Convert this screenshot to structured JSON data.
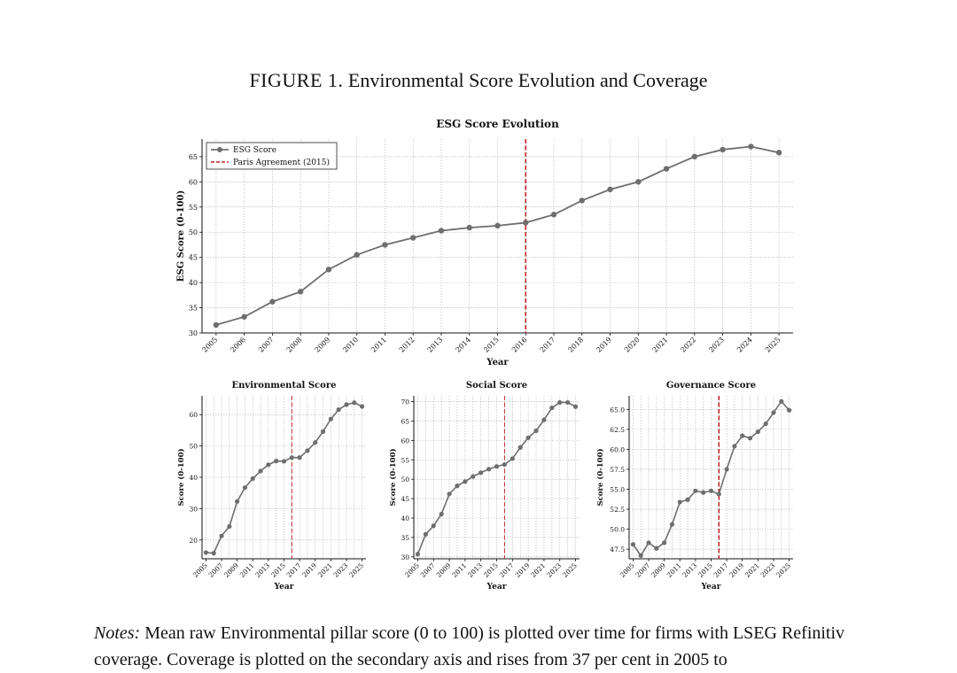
{
  "figure": {
    "label": "FIGURE 1.",
    "title": "Environmental Score Evolution and Coverage"
  },
  "notes": {
    "label": "Notes:",
    "text": "Mean raw Environmental pillar score (0 to 100) is plotted over time for firms with LSEG Refinitiv coverage. Coverage is plotted on the secondary axis and rises from 37 per cent in 2005 to"
  },
  "colors": {
    "line": "#6e6e6e",
    "marker": "#6e6e6e",
    "paris_line": "#c0272d",
    "grid": "#b0b0b0"
  },
  "chart_data": [
    {
      "type": "line",
      "title": "ESG Score Evolution",
      "xlabel": "Year",
      "ylabel": "ESG Score (0-100)",
      "x": [
        2005,
        2006,
        2007,
        2008,
        2009,
        2010,
        2011,
        2012,
        2013,
        2014,
        2015,
        2016,
        2017,
        2018,
        2019,
        2020,
        2021,
        2022,
        2023,
        2024,
        2025
      ],
      "series": [
        {
          "name": "ESG Score",
          "values": [
            31.6,
            33.2,
            36.2,
            38.2,
            42.6,
            45.5,
            47.5,
            48.9,
            50.3,
            50.9,
            51.3,
            51.9,
            53.5,
            56.3,
            58.5,
            60.0,
            62.6,
            65.0,
            66.4,
            67.0,
            65.8
          ]
        }
      ],
      "annotations": [
        {
          "name": "Paris Agreement (2015)",
          "x": 2016,
          "style": "dashed"
        }
      ],
      "xticks": [
        "2005",
        "2006",
        "2007",
        "2008",
        "2009",
        "2010",
        "2011",
        "2012",
        "2013",
        "2014",
        "2015",
        "2016",
        "2017",
        "2018",
        "2019",
        "2020",
        "2021",
        "2022",
        "2023",
        "2024",
        "2025"
      ],
      "yticks": [
        "30",
        "35",
        "40",
        "45",
        "50",
        "55",
        "60",
        "65"
      ],
      "ylim": [
        30,
        68.5
      ],
      "legend": [
        "ESG Score",
        "Paris Agreement (2015)"
      ],
      "legend_position": "upper left",
      "grid": true
    },
    {
      "type": "line",
      "title": "Environmental Score",
      "xlabel": "Year",
      "ylabel": "Score (0-100)",
      "x": [
        2005,
        2006,
        2007,
        2008,
        2009,
        2010,
        2011,
        2012,
        2013,
        2014,
        2015,
        2016,
        2017,
        2018,
        2019,
        2020,
        2021,
        2022,
        2023,
        2024,
        2025
      ],
      "series": [
        {
          "name": "Environmental Score",
          "values": [
            16.0,
            15.8,
            21.3,
            24.3,
            32.3,
            36.7,
            39.6,
            42.0,
            44.0,
            45.2,
            45.1,
            46.3,
            46.3,
            48.5,
            51.1,
            54.6,
            58.6,
            61.6,
            63.2,
            63.8,
            62.6
          ]
        }
      ],
      "annotations": [
        {
          "name": "Paris Agreement (2015)",
          "x": 2016,
          "style": "dashed"
        }
      ],
      "xticks": [
        "2005",
        "2007",
        "2009",
        "2011",
        "2013",
        "2015",
        "2017",
        "2019",
        "2021",
        "2023",
        "2025"
      ],
      "yticks": [
        "20",
        "30",
        "40",
        "50",
        "60"
      ],
      "ylim": [
        14,
        66
      ],
      "grid": true
    },
    {
      "type": "line",
      "title": "Social Score",
      "xlabel": "Year",
      "ylabel": "Score (0-100)",
      "x": [
        2005,
        2006,
        2007,
        2008,
        2009,
        2010,
        2011,
        2012,
        2013,
        2014,
        2015,
        2016,
        2017,
        2018,
        2019,
        2020,
        2021,
        2022,
        2023,
        2024,
        2025
      ],
      "series": [
        {
          "name": "Social Score",
          "values": [
            30.7,
            35.8,
            38.0,
            41.0,
            46.2,
            48.3,
            49.4,
            50.7,
            51.7,
            52.6,
            53.3,
            53.8,
            55.3,
            58.2,
            60.7,
            62.5,
            65.3,
            68.4,
            69.8,
            69.8,
            68.7
          ]
        }
      ],
      "annotations": [
        {
          "name": "Paris Agreement (2015)",
          "x": 2016,
          "style": "dashed"
        }
      ],
      "xticks": [
        "2005",
        "2007",
        "2009",
        "2011",
        "2013",
        "2015",
        "2017",
        "2019",
        "2021",
        "2023",
        "2025"
      ],
      "yticks": [
        "30",
        "35",
        "40",
        "45",
        "50",
        "55",
        "60",
        "65",
        "70"
      ],
      "ylim": [
        29.5,
        71.5
      ],
      "grid": true
    },
    {
      "type": "line",
      "title": "Governance Score",
      "xlabel": "Year",
      "ylabel": "Score (0-100)",
      "x": [
        2005,
        2006,
        2007,
        2008,
        2009,
        2010,
        2011,
        2012,
        2013,
        2014,
        2015,
        2016,
        2017,
        2018,
        2019,
        2020,
        2021,
        2022,
        2023,
        2024,
        2025
      ],
      "series": [
        {
          "name": "Governance Score",
          "values": [
            48.1,
            46.7,
            48.3,
            47.6,
            48.3,
            50.6,
            53.4,
            53.7,
            54.8,
            54.6,
            54.8,
            54.4,
            57.5,
            60.4,
            61.7,
            61.4,
            62.2,
            63.2,
            64.6,
            66.0,
            64.9
          ]
        }
      ],
      "annotations": [
        {
          "name": "Paris Agreement (2015)",
          "x": 2016,
          "style": "dashed"
        }
      ],
      "xticks": [
        "2005",
        "2007",
        "2009",
        "2011",
        "2013",
        "2015",
        "2017",
        "2019",
        "2021",
        "2023",
        "2025"
      ],
      "yticks": [
        "47.5",
        "50.0",
        "52.5",
        "55.0",
        "57.5",
        "60.0",
        "62.5",
        "65.0"
      ],
      "ylim": [
        46.3,
        66.7
      ],
      "grid": true
    }
  ]
}
